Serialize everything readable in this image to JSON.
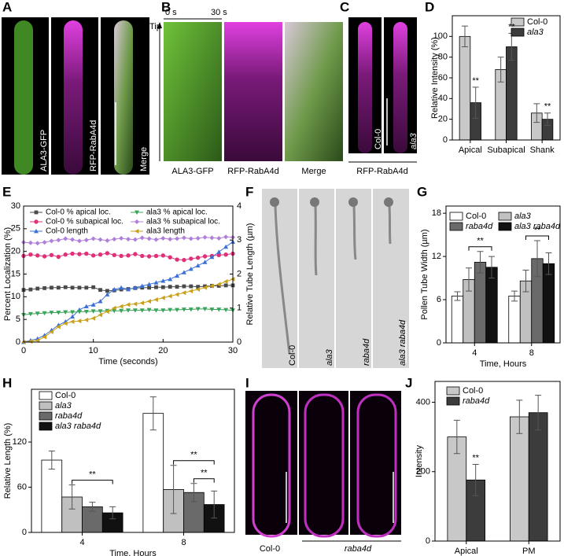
{
  "panel_labels": [
    "A",
    "B",
    "C",
    "D",
    "E",
    "F",
    "G",
    "H",
    "I",
    "J"
  ],
  "figure": {
    "A": {
      "channels": [
        "ALA3-GFP",
        "RFP-RabA4d",
        "Merge"
      ]
    },
    "B": {
      "time_start": "0 s",
      "time_end": "30 s",
      "axis_label": "Tip",
      "channels": [
        "ALA3-GFP",
        "RFP-RabA4d",
        "Merge"
      ]
    },
    "C": {
      "genotypes": [
        "Col-0",
        "ala3"
      ],
      "channel": "RFP-RabA4d"
    },
    "F": {
      "genotypes": [
        "Col-0",
        "ala3",
        "raba4d",
        "ala3 raba4d"
      ]
    },
    "I": {
      "genotypes": [
        "Col-0",
        "raba4d"
      ]
    }
  },
  "chart_data": [
    {
      "type": "bar",
      "ylabel": "Relative Intensity (%)",
      "categories": [
        "Apical",
        "Subapical",
        "Shank"
      ],
      "series": [
        {
          "name": "Col-0",
          "color": "#c8c8c8",
          "values": [
            100,
            68,
            26
          ],
          "errors": [
            10,
            12,
            9
          ]
        },
        {
          "name": "ala3",
          "color": "#3c3c3c",
          "italic": true,
          "values": [
            36,
            90,
            20
          ],
          "errors": [
            15,
            13,
            6
          ]
        }
      ],
      "ylim": [
        0,
        120
      ],
      "yticks": [
        0,
        20,
        40,
        60,
        80,
        100
      ],
      "annotations": [
        "**",
        "**",
        "**"
      ]
    },
    {
      "type": "line",
      "xlabel": "Time (seconds)",
      "ylabel": "Percent Localization (%)",
      "y2label": "Relative Tube Length (µm)",
      "x": [
        0,
        1,
        2,
        3,
        4,
        5,
        6,
        7,
        8,
        9,
        10,
        11,
        12,
        13,
        14,
        15,
        16,
        17,
        18,
        19,
        20,
        21,
        22,
        23,
        24,
        25,
        26,
        27,
        28,
        29,
        30
      ],
      "series": [
        {
          "name": "Col-0 % apical loc.",
          "color": "#4a4a4a",
          "marker": "square",
          "values": [
            11.5,
            11.6,
            11.8,
            11.9,
            12.0,
            12.0,
            12.1,
            12.0,
            12.0,
            12.0,
            12.1,
            11.5,
            11.3,
            11.4,
            11.6,
            11.7,
            11.9,
            12.0,
            12.0,
            12.1,
            12.1,
            12.2,
            12.2,
            12.3,
            12.3,
            12.2,
            12.3,
            12.4,
            12.4,
            12.5,
            12.5
          ]
        },
        {
          "name": "Col-0 % subapical loc.",
          "color": "#e0307a",
          "marker": "circle",
          "values": [
            19.0,
            19.3,
            19.1,
            18.9,
            19.2,
            18.8,
            19.3,
            19.5,
            19.4,
            19.5,
            19.1,
            19.3,
            19.6,
            19.2,
            19.0,
            19.1,
            19.4,
            19.0,
            18.9,
            19.0,
            19.1,
            18.7,
            18.2,
            18.1,
            18.4,
            18.6,
            18.9,
            19.0,
            19.2,
            19.3,
            19.5
          ]
        },
        {
          "name": "Col-0 length",
          "color": "#3b6fd8",
          "marker": "triangle-up",
          "axis": "y2",
          "values": [
            0,
            0.05,
            0.1,
            0.2,
            0.35,
            0.5,
            0.6,
            0.75,
            0.95,
            1.05,
            1.1,
            1.2,
            1.4,
            1.55,
            1.6,
            1.55,
            1.6,
            1.65,
            1.7,
            1.75,
            1.8,
            1.85,
            1.95,
            2.05,
            2.15,
            2.25,
            2.35,
            2.5,
            2.65,
            2.8,
            2.95
          ]
        },
        {
          "name": "ala3 % apical loc.",
          "color": "#3aa45a",
          "marker": "triangle-down",
          "values": [
            6.0,
            6.2,
            6.3,
            6.4,
            6.5,
            6.5,
            6.6,
            6.6,
            6.7,
            6.7,
            6.8,
            6.8,
            6.9,
            6.9,
            6.9,
            7.0,
            7.0,
            7.0,
            7.1,
            7.0,
            7.0,
            7.1,
            7.1,
            7.2,
            7.2,
            7.3,
            7.3,
            7.2,
            7.2,
            7.1,
            7.0
          ]
        },
        {
          "name": "ala3 % subapical loc.",
          "color": "#b07fd8",
          "marker": "diamond",
          "values": [
            22.0,
            21.9,
            21.8,
            22.0,
            22.3,
            22.5,
            22.8,
            22.6,
            22.3,
            22.5,
            22.8,
            22.6,
            22.4,
            22.7,
            22.9,
            22.7,
            22.6,
            23.0,
            22.8,
            22.6,
            22.9,
            22.7,
            22.8,
            23.0,
            22.8,
            22.9,
            23.1,
            23.0,
            22.9,
            23.2,
            23.1
          ]
        },
        {
          "name": "ala3 length",
          "color": "#c9a018",
          "marker": "triangle-left",
          "axis": "y2",
          "values": [
            0,
            0.02,
            0.05,
            0.15,
            0.3,
            0.45,
            0.55,
            0.6,
            0.62,
            0.65,
            0.7,
            0.8,
            0.9,
            1.0,
            1.05,
            1.1,
            1.12,
            1.15,
            1.2,
            1.25,
            1.3,
            1.35,
            1.4,
            1.45,
            1.5,
            1.55,
            1.6,
            1.65,
            1.7,
            1.78,
            1.85
          ]
        }
      ],
      "xlim": [
        0,
        30
      ],
      "xticks": [
        0,
        10,
        20,
        30
      ],
      "ylim": [
        0,
        30
      ],
      "yticks": [
        0,
        5,
        10,
        15,
        20,
        25,
        30
      ],
      "y2lim": [
        0,
        4
      ],
      "y2ticks": [
        0,
        1,
        2,
        3,
        4
      ]
    },
    {
      "type": "bar",
      "xlabel": "Time, Hours",
      "ylabel": "Pollen Tube Width (µm)",
      "categories": [
        "4",
        "8"
      ],
      "series": [
        {
          "name": "Col-0",
          "color": "#ffffff",
          "values": [
            6.5,
            6.5
          ],
          "errors": [
            0.6,
            0.7
          ]
        },
        {
          "name": "ala3",
          "color": "#c0c0c0",
          "italic": true,
          "values": [
            8.8,
            8.6
          ],
          "errors": [
            1.6,
            1.5
          ]
        },
        {
          "name": "raba4d",
          "color": "#6a6a6a",
          "italic": true,
          "values": [
            11.2,
            11.7
          ],
          "errors": [
            1.5,
            2.5
          ]
        },
        {
          "name": "ala3 raba4d",
          "color": "#111111",
          "italic": true,
          "values": [
            10.5,
            11.0
          ],
          "errors": [
            1.5,
            1.5
          ]
        }
      ],
      "ylim": [
        0,
        19
      ],
      "yticks": [
        0,
        6,
        12,
        18
      ],
      "annotations": [
        "**",
        "**"
      ]
    },
    {
      "type": "bar",
      "xlabel": "Time, Hours",
      "ylabel": "Relative Length (%)",
      "categories": [
        "4",
        "8"
      ],
      "series": [
        {
          "name": "Col-0",
          "color": "#ffffff",
          "values": [
            96,
            158
          ],
          "errors": [
            12,
            22
          ]
        },
        {
          "name": "ala3",
          "color": "#c0c0c0",
          "italic": true,
          "values": [
            47,
            57
          ],
          "errors": [
            16,
            32
          ]
        },
        {
          "name": "raba4d",
          "color": "#6a6a6a",
          "italic": true,
          "values": [
            34,
            53
          ],
          "errors": [
            6,
            12
          ]
        },
        {
          "name": "ala3 raba4d",
          "color": "#111111",
          "italic": true,
          "values": [
            26,
            37
          ],
          "errors": [
            8,
            18
          ]
        }
      ],
      "ylim": [
        0,
        190
      ],
      "yticks": [
        0,
        60,
        120
      ],
      "annotations": [
        "**",
        "**",
        "**"
      ]
    },
    {
      "type": "bar",
      "ylabel": "Intensity",
      "categories": [
        "Apical",
        "PM"
      ],
      "series": [
        {
          "name": "Col-0",
          "color": "#c8c8c8",
          "values": [
            300,
            358
          ],
          "errors": [
            48,
            48
          ]
        },
        {
          "name": "raba4d",
          "color": "#3c3c3c",
          "italic": true,
          "values": [
            176,
            370
          ],
          "errors": [
            45,
            50
          ]
        }
      ],
      "ylim": [
        0,
        460
      ],
      "yticks": [
        0,
        200,
        400
      ],
      "annotations": [
        "**"
      ]
    }
  ]
}
